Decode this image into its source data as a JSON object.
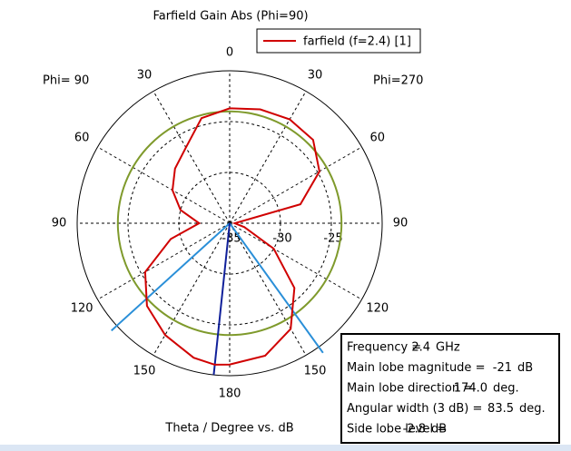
{
  "chart_data": {
    "type": "polar",
    "title": "Farfield Gain Abs (Phi=90)",
    "xlabel": "Theta / Degree vs. dB",
    "left_label": "Phi= 90",
    "right_label": "Phi=270",
    "angle_ticks": [
      0,
      30,
      60,
      90,
      120,
      150,
      180
    ],
    "rlim": [
      -35,
      -20
    ],
    "rticks": [
      -35,
      -30,
      -25
    ],
    "grid": true,
    "legend": "top-right",
    "series": [
      {
        "name": "farfield (f=2.4) [1]",
        "color": "#d00000",
        "x": [
          0,
          15,
          30,
          45,
          60,
          75,
          90,
          105,
          120,
          135,
          150,
          165,
          180,
          186,
          195,
          210,
          225,
          240,
          255,
          270,
          285,
          300,
          315,
          330,
          345
        ],
        "values": [
          -23.7,
          -23.4,
          -23.2,
          -23.4,
          -24.8,
          -27.8,
          -34.5,
          -33.5,
          -30,
          -26,
          -23,
          -21.5,
          -21.1,
          -21,
          -21.3,
          -22.3,
          -23.5,
          -25.4,
          -29,
          -32,
          -30,
          -28.5,
          -27.4,
          -26.4,
          -24.3
        ]
      }
    ],
    "info": [
      {
        "label": "Frequency =",
        "value": 2.4,
        "unit": "GHz"
      },
      {
        "label": "Main lobe magnitude =",
        "value": -21,
        "unit": "dB"
      },
      {
        "label": "Main lobe direction =",
        "value": {
          "value": 174,
          "label": "174.0"
        },
        "unit": "deg."
      },
      {
        "label": "Angular width (3 dB) =",
        "value": 83.5,
        "unit": "deg."
      },
      {
        "label": "Side lobe level =",
        "value": -2.8,
        "unit": "dB"
      }
    ]
  }
}
